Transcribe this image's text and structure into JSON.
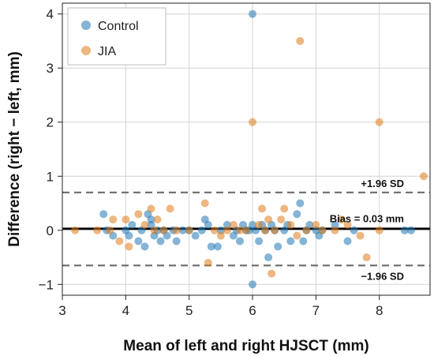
{
  "chart_data": {
    "type": "scatter",
    "xlabel": "Mean of left and right HJSCT (mm)",
    "ylabel": "Difference (right − left, mm)",
    "xlim": [
      3,
      8.8
    ],
    "ylim": [
      -1.2,
      4.2
    ],
    "xticks": [
      3,
      4,
      5,
      6,
      7,
      8
    ],
    "yticks": [
      -1,
      0,
      1,
      2,
      3,
      4
    ],
    "grid": true,
    "legend_position": "top-left",
    "colors": {
      "Control": "#1f77b4",
      "JIA": "#e07b1a"
    },
    "reference_lines": [
      {
        "label": "+1.96 SD",
        "y": 0.7,
        "style": "dashed"
      },
      {
        "label": "Bias = 0.03 mm",
        "y": 0.03,
        "style": "solid"
      },
      {
        "label": "−1.96 SD",
        "y": -0.65,
        "style": "dashed"
      }
    ],
    "series": [
      {
        "name": "Control",
        "points": [
          [
            3.65,
            0.3
          ],
          [
            3.7,
            0.0
          ],
          [
            3.8,
            -0.1
          ],
          [
            4.0,
            0.0
          ],
          [
            4.05,
            -0.1
          ],
          [
            4.1,
            0.1
          ],
          [
            4.2,
            -0.2
          ],
          [
            4.25,
            0.0
          ],
          [
            4.3,
            -0.3
          ],
          [
            4.35,
            0.3
          ],
          [
            4.4,
            0.2
          ],
          [
            4.4,
            0.1
          ],
          [
            4.45,
            -0.1
          ],
          [
            4.5,
            0.0
          ],
          [
            4.55,
            -0.2
          ],
          [
            4.6,
            0.0
          ],
          [
            4.65,
            -0.1
          ],
          [
            4.75,
            0.0
          ],
          [
            4.8,
            -0.2
          ],
          [
            4.9,
            0.0
          ],
          [
            5.0,
            0.0
          ],
          [
            5.1,
            -0.1
          ],
          [
            5.2,
            0.0
          ],
          [
            5.25,
            0.2
          ],
          [
            5.3,
            0.1
          ],
          [
            5.35,
            -0.3
          ],
          [
            5.45,
            -0.3
          ],
          [
            5.5,
            0.0
          ],
          [
            5.6,
            0.1
          ],
          [
            5.7,
            -0.1
          ],
          [
            5.75,
            0.0
          ],
          [
            5.8,
            -0.2
          ],
          [
            5.85,
            0.1
          ],
          [
            5.9,
            0.0
          ],
          [
            5.95,
            0.0
          ],
          [
            6.0,
            4.0
          ],
          [
            6.0,
            -1.0
          ],
          [
            6.0,
            0.1
          ],
          [
            6.05,
            0.0
          ],
          [
            6.1,
            -0.2
          ],
          [
            6.15,
            0.1
          ],
          [
            6.2,
            0.0
          ],
          [
            6.25,
            -0.5
          ],
          [
            6.3,
            0.1
          ],
          [
            6.35,
            0.0
          ],
          [
            6.4,
            -0.3
          ],
          [
            6.5,
            0.0
          ],
          [
            6.55,
            0.1
          ],
          [
            6.6,
            -0.2
          ],
          [
            6.7,
            0.3
          ],
          [
            6.75,
            0.5
          ],
          [
            6.8,
            -0.2
          ],
          [
            6.85,
            0.0
          ],
          [
            6.9,
            0.1
          ],
          [
            7.0,
            0.0
          ],
          [
            7.05,
            -0.1
          ],
          [
            7.1,
            0.0
          ],
          [
            7.3,
            0.1
          ],
          [
            7.5,
            -0.2
          ],
          [
            7.6,
            0.0
          ],
          [
            8.4,
            0.0
          ],
          [
            8.5,
            0.0
          ]
        ]
      },
      {
        "name": "JIA",
        "points": [
          [
            3.2,
            0.0
          ],
          [
            3.55,
            0.0
          ],
          [
            3.75,
            0.0
          ],
          [
            3.8,
            0.2
          ],
          [
            3.9,
            -0.2
          ],
          [
            4.0,
            0.2
          ],
          [
            4.05,
            -0.3
          ],
          [
            4.2,
            0.3
          ],
          [
            4.3,
            0.1
          ],
          [
            4.4,
            0.4
          ],
          [
            4.45,
            0.0
          ],
          [
            4.5,
            0.2
          ],
          [
            4.6,
            0.0
          ],
          [
            4.7,
            0.4
          ],
          [
            4.8,
            0.0
          ],
          [
            5.0,
            0.0
          ],
          [
            5.25,
            0.5
          ],
          [
            5.3,
            -0.6
          ],
          [
            5.4,
            0.0
          ],
          [
            5.5,
            -0.1
          ],
          [
            5.6,
            0.0
          ],
          [
            5.7,
            0.1
          ],
          [
            5.8,
            0.0
          ],
          [
            5.9,
            0.0
          ],
          [
            6.0,
            2.0
          ],
          [
            6.1,
            0.1
          ],
          [
            6.15,
            0.4
          ],
          [
            6.2,
            0.0
          ],
          [
            6.25,
            0.2
          ],
          [
            6.3,
            -0.8
          ],
          [
            6.35,
            0.0
          ],
          [
            6.45,
            0.2
          ],
          [
            6.5,
            0.4
          ],
          [
            6.6,
            0.1
          ],
          [
            6.7,
            -0.1
          ],
          [
            6.75,
            3.5
          ],
          [
            6.85,
            0.0
          ],
          [
            7.0,
            0.1
          ],
          [
            7.1,
            0.0
          ],
          [
            7.3,
            0.0
          ],
          [
            7.4,
            0.2
          ],
          [
            7.5,
            0.1
          ],
          [
            7.7,
            -0.1
          ],
          [
            7.8,
            -0.5
          ],
          [
            8.0,
            2.0
          ],
          [
            8.0,
            0.0
          ],
          [
            8.7,
            1.0
          ]
        ]
      }
    ]
  }
}
